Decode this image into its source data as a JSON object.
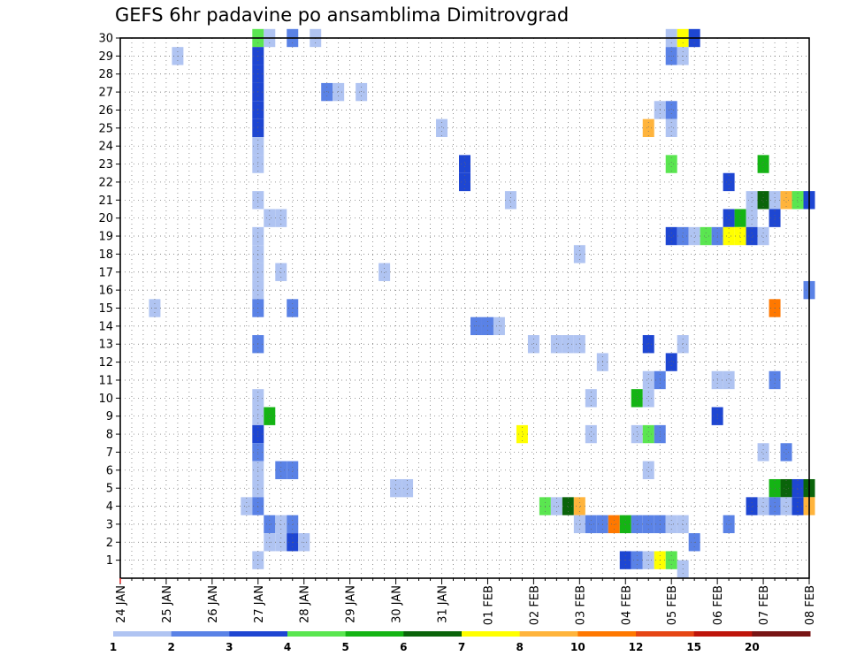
{
  "chart_data": {
    "type": "heatmap",
    "title": "GEFS 6hr padavine po ansamblima Dimitrovgrad",
    "x_tick_labels": [
      "24 JAN",
      "25 JAN",
      "26 JAN",
      "27 JAN",
      "28 JAN",
      "29 JAN",
      "30 JAN",
      "31 JAN",
      "01 FEB",
      "02 FEB",
      "03 FEB",
      "04 FEB",
      "05 FEB",
      "06 FEB",
      "07 FEB",
      "08 FEB"
    ],
    "x_range_days": [
      0,
      15
    ],
    "x_step": "6hr",
    "y_tick_labels": [
      "1",
      "2",
      "3",
      "4",
      "5",
      "6",
      "7",
      "8",
      "9",
      "10",
      "11",
      "12",
      "13",
      "14",
      "15",
      "16",
      "17",
      "18",
      "19",
      "20",
      "21",
      "22",
      "23",
      "24",
      "25",
      "26",
      "27",
      "28",
      "29",
      "30"
    ],
    "y_range": [
      0,
      30
    ],
    "grid": true,
    "colorbar": {
      "labels": [
        "1",
        "2",
        "3",
        "4",
        "5",
        "6",
        "7",
        "8",
        "10",
        "12",
        "15",
        "20"
      ],
      "colors": [
        "#b0c4f2",
        "#5a82e6",
        "#1e46d2",
        "#5ae650",
        "#14b414",
        "#0a640a",
        "#ffff00",
        "#ffb43c",
        "#ff7800",
        "#e64614",
        "#be140a",
        "#781414"
      ]
    },
    "cells": [
      {
        "member": 30,
        "x": 3.0,
        "bin": 4
      },
      {
        "member": 30,
        "x": 3.25,
        "bin": 1
      },
      {
        "member": 30,
        "x": 3.75,
        "bin": 2
      },
      {
        "member": 30,
        "x": 4.25,
        "bin": 1
      },
      {
        "member": 30,
        "x": 12.0,
        "bin": 1
      },
      {
        "member": 30,
        "x": 12.25,
        "bin": 7
      },
      {
        "member": 30,
        "x": 12.5,
        "bin": 3
      },
      {
        "member": 29,
        "x": 1.25,
        "bin": 1
      },
      {
        "member": 29,
        "x": 3.0,
        "bin": 3
      },
      {
        "member": 29,
        "x": 12.0,
        "bin": 2
      },
      {
        "member": 29,
        "x": 12.25,
        "bin": 1
      },
      {
        "member": 28,
        "x": 3.0,
        "bin": 3
      },
      {
        "member": 27,
        "x": 3.0,
        "bin": 3
      },
      {
        "member": 27,
        "x": 4.5,
        "bin": 2
      },
      {
        "member": 27,
        "x": 4.75,
        "bin": 1
      },
      {
        "member": 27,
        "x": 5.25,
        "bin": 1
      },
      {
        "member": 26,
        "x": 3.0,
        "bin": 3
      },
      {
        "member": 26,
        "x": 11.75,
        "bin": 1
      },
      {
        "member": 26,
        "x": 12.0,
        "bin": 2
      },
      {
        "member": 25,
        "x": 3.0,
        "bin": 3
      },
      {
        "member": 25,
        "x": 7.0,
        "bin": 1
      },
      {
        "member": 25,
        "x": 11.5,
        "bin": 8
      },
      {
        "member": 25,
        "x": 12.0,
        "bin": 1
      },
      {
        "member": 24,
        "x": 3.0,
        "bin": 1
      },
      {
        "member": 23,
        "x": 3.0,
        "bin": 1
      },
      {
        "member": 23,
        "x": 7.5,
        "bin": 3
      },
      {
        "member": 23,
        "x": 12.0,
        "bin": 4
      },
      {
        "member": 23,
        "x": 14.0,
        "bin": 5
      },
      {
        "member": 22,
        "x": 7.5,
        "bin": 3
      },
      {
        "member": 22,
        "x": 13.25,
        "bin": 3
      },
      {
        "member": 21,
        "x": 3.0,
        "bin": 1
      },
      {
        "member": 21,
        "x": 8.5,
        "bin": 1
      },
      {
        "member": 21,
        "x": 13.75,
        "bin": 1
      },
      {
        "member": 21,
        "x": 14.0,
        "bin": 6
      },
      {
        "member": 21,
        "x": 14.25,
        "bin": 1
      },
      {
        "member": 21,
        "x": 14.5,
        "bin": 8
      },
      {
        "member": 21,
        "x": 14.75,
        "bin": 4
      },
      {
        "member": 21,
        "x": 15.0,
        "bin": 3
      },
      {
        "member": 20,
        "x": 3.25,
        "bin": 1
      },
      {
        "member": 20,
        "x": 3.5,
        "bin": 1
      },
      {
        "member": 20,
        "x": 13.25,
        "bin": 3
      },
      {
        "member": 20,
        "x": 13.5,
        "bin": 5
      },
      {
        "member": 20,
        "x": 13.75,
        "bin": 1
      },
      {
        "member": 20,
        "x": 14.25,
        "bin": 3
      },
      {
        "member": 19,
        "x": 3.0,
        "bin": 1
      },
      {
        "member": 19,
        "x": 12.0,
        "bin": 3
      },
      {
        "member": 19,
        "x": 12.25,
        "bin": 2
      },
      {
        "member": 19,
        "x": 12.5,
        "bin": 1
      },
      {
        "member": 19,
        "x": 12.75,
        "bin": 4
      },
      {
        "member": 19,
        "x": 13.0,
        "bin": 2
      },
      {
        "member": 19,
        "x": 13.25,
        "bin": 7
      },
      {
        "member": 19,
        "x": 13.5,
        "bin": 7
      },
      {
        "member": 19,
        "x": 13.75,
        "bin": 3
      },
      {
        "member": 19,
        "x": 14.0,
        "bin": 1
      },
      {
        "member": 18,
        "x": 3.0,
        "bin": 1
      },
      {
        "member": 18,
        "x": 10.0,
        "bin": 1
      },
      {
        "member": 17,
        "x": 3.0,
        "bin": 1
      },
      {
        "member": 17,
        "x": 3.5,
        "bin": 1
      },
      {
        "member": 17,
        "x": 5.75,
        "bin": 1
      },
      {
        "member": 16,
        "x": 3.0,
        "bin": 1
      },
      {
        "member": 16,
        "x": 15.0,
        "bin": 2
      },
      {
        "member": 15,
        "x": 0.75,
        "bin": 1
      },
      {
        "member": 15,
        "x": 3.0,
        "bin": 2
      },
      {
        "member": 15,
        "x": 3.75,
        "bin": 2
      },
      {
        "member": 15,
        "x": 14.25,
        "bin": 9
      },
      {
        "member": 14,
        "x": 7.75,
        "bin": 2
      },
      {
        "member": 14,
        "x": 8.0,
        "bin": 2
      },
      {
        "member": 14,
        "x": 8.25,
        "bin": 1
      },
      {
        "member": 13,
        "x": 3.0,
        "bin": 2
      },
      {
        "member": 13,
        "x": 9.0,
        "bin": 1
      },
      {
        "member": 13,
        "x": 9.5,
        "bin": 1
      },
      {
        "member": 13,
        "x": 9.75,
        "bin": 1
      },
      {
        "member": 13,
        "x": 10.0,
        "bin": 1
      },
      {
        "member": 13,
        "x": 11.5,
        "bin": 3
      },
      {
        "member": 13,
        "x": 12.25,
        "bin": 1
      },
      {
        "member": 12,
        "x": 10.5,
        "bin": 1
      },
      {
        "member": 12,
        "x": 12.0,
        "bin": 3
      },
      {
        "member": 11,
        "x": 11.5,
        "bin": 1
      },
      {
        "member": 11,
        "x": 11.75,
        "bin": 2
      },
      {
        "member": 11,
        "x": 13.0,
        "bin": 1
      },
      {
        "member": 11,
        "x": 13.25,
        "bin": 1
      },
      {
        "member": 11,
        "x": 14.25,
        "bin": 2
      },
      {
        "member": 10,
        "x": 3.0,
        "bin": 1
      },
      {
        "member": 10,
        "x": 10.25,
        "bin": 1
      },
      {
        "member": 10,
        "x": 11.25,
        "bin": 5
      },
      {
        "member": 10,
        "x": 11.5,
        "bin": 1
      },
      {
        "member": 9,
        "x": 3.0,
        "bin": 1
      },
      {
        "member": 9,
        "x": 3.25,
        "bin": 5
      },
      {
        "member": 9,
        "x": 13.0,
        "bin": 3
      },
      {
        "member": 8,
        "x": 3.0,
        "bin": 3
      },
      {
        "member": 8,
        "x": 8.75,
        "bin": 7
      },
      {
        "member": 8,
        "x": 10.25,
        "bin": 1
      },
      {
        "member": 8,
        "x": 11.25,
        "bin": 1
      },
      {
        "member": 8,
        "x": 11.5,
        "bin": 4
      },
      {
        "member": 8,
        "x": 11.75,
        "bin": 2
      },
      {
        "member": 7,
        "x": 3.0,
        "bin": 2
      },
      {
        "member": 7,
        "x": 14.0,
        "bin": 1
      },
      {
        "member": 7,
        "x": 14.5,
        "bin": 2
      },
      {
        "member": 6,
        "x": 3.0,
        "bin": 1
      },
      {
        "member": 6,
        "x": 3.5,
        "bin": 2
      },
      {
        "member": 6,
        "x": 3.75,
        "bin": 2
      },
      {
        "member": 6,
        "x": 11.5,
        "bin": 1
      },
      {
        "member": 5,
        "x": 3.0,
        "bin": 1
      },
      {
        "member": 5,
        "x": 6.0,
        "bin": 1
      },
      {
        "member": 5,
        "x": 6.25,
        "bin": 1
      },
      {
        "member": 5,
        "x": 14.25,
        "bin": 5
      },
      {
        "member": 5,
        "x": 14.5,
        "bin": 6
      },
      {
        "member": 5,
        "x": 14.75,
        "bin": 3
      },
      {
        "member": 5,
        "x": 15.0,
        "bin": 6
      },
      {
        "member": 4,
        "x": 2.75,
        "bin": 1
      },
      {
        "member": 4,
        "x": 3.0,
        "bin": 2
      },
      {
        "member": 4,
        "x": 9.25,
        "bin": 4
      },
      {
        "member": 4,
        "x": 9.5,
        "bin": 1
      },
      {
        "member": 4,
        "x": 9.75,
        "bin": 6
      },
      {
        "member": 4,
        "x": 10.0,
        "bin": 8
      },
      {
        "member": 4,
        "x": 13.75,
        "bin": 3
      },
      {
        "member": 4,
        "x": 14.0,
        "bin": 1
      },
      {
        "member": 4,
        "x": 14.25,
        "bin": 2
      },
      {
        "member": 4,
        "x": 14.5,
        "bin": 1
      },
      {
        "member": 4,
        "x": 14.75,
        "bin": 3
      },
      {
        "member": 4,
        "x": 15.0,
        "bin": 8
      },
      {
        "member": 3,
        "x": 3.25,
        "bin": 2
      },
      {
        "member": 3,
        "x": 3.5,
        "bin": 1
      },
      {
        "member": 3,
        "x": 3.75,
        "bin": 2
      },
      {
        "member": 3,
        "x": 10.0,
        "bin": 1
      },
      {
        "member": 3,
        "x": 10.25,
        "bin": 2
      },
      {
        "member": 3,
        "x": 10.5,
        "bin": 2
      },
      {
        "member": 3,
        "x": 10.75,
        "bin": 9
      },
      {
        "member": 3,
        "x": 11.0,
        "bin": 5
      },
      {
        "member": 3,
        "x": 11.25,
        "bin": 2
      },
      {
        "member": 3,
        "x": 11.5,
        "bin": 2
      },
      {
        "member": 3,
        "x": 11.75,
        "bin": 2
      },
      {
        "member": 3,
        "x": 12.0,
        "bin": 1
      },
      {
        "member": 3,
        "x": 12.25,
        "bin": 1
      },
      {
        "member": 3,
        "x": 13.25,
        "bin": 2
      },
      {
        "member": 2,
        "x": 3.25,
        "bin": 1
      },
      {
        "member": 2,
        "x": 3.5,
        "bin": 1
      },
      {
        "member": 2,
        "x": 3.75,
        "bin": 3
      },
      {
        "member": 2,
        "x": 4.0,
        "bin": 1
      },
      {
        "member": 2,
        "x": 12.5,
        "bin": 2
      },
      {
        "member": 1,
        "x": 3.0,
        "bin": 1
      },
      {
        "member": 1,
        "x": 11.0,
        "bin": 3
      },
      {
        "member": 1,
        "x": 11.25,
        "bin": 2
      },
      {
        "member": 1,
        "x": 11.5,
        "bin": 1
      },
      {
        "member": 1,
        "x": 11.75,
        "bin": 7
      },
      {
        "member": 1,
        "x": 12.0,
        "bin": 4
      },
      {
        "member": 0.5,
        "x": 12.25,
        "bin": 1
      }
    ]
  }
}
